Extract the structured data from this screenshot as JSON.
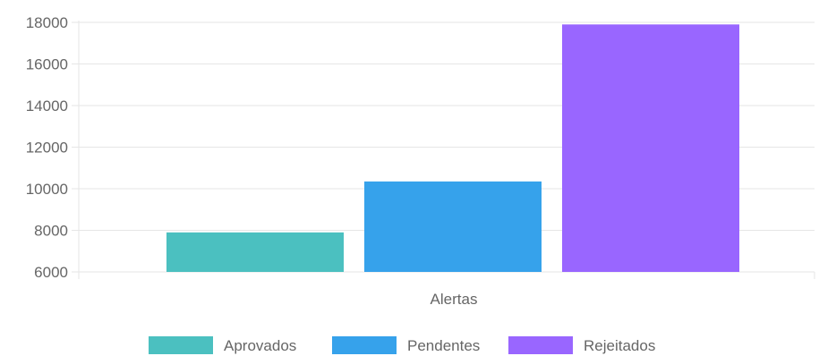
{
  "chart_data": {
    "type": "bar",
    "categories": [
      "Alertas"
    ],
    "series": [
      {
        "name": "Aprovados",
        "values": [
          7900
        ],
        "color": "#4bc0c0"
      },
      {
        "name": "Pendentes",
        "values": [
          10350
        ],
        "color": "#36a2eb"
      },
      {
        "name": "Rejeitados",
        "values": [
          17900
        ],
        "color": "#9966ff"
      }
    ],
    "yticks": [
      "6000",
      "8000",
      "10000",
      "12000",
      "14000",
      "16000",
      "18000"
    ],
    "ylim": [
      6000,
      18000
    ],
    "grid": true,
    "legend_position": "bottom",
    "title": "",
    "ylabel": ""
  }
}
